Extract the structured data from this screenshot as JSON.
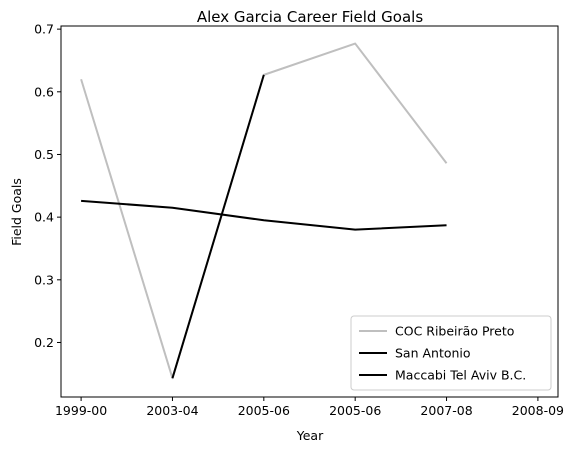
{
  "chart_data": {
    "type": "line",
    "title": "Alex Garcia  Career Field Goals",
    "xlabel": "Year",
    "ylabel": "Field Goals",
    "x_tick_labels": [
      "1999-00",
      "2003-04",
      "2005-06",
      "2005-06",
      "2007-08",
      "2008-09"
    ],
    "y_tick_labels": [
      "0.2",
      "0.3",
      "0.4",
      "0.5",
      "0.6",
      "0.7"
    ],
    "y_ticks": [
      0.2,
      0.3,
      0.4,
      0.5,
      0.6,
      0.7
    ],
    "ylim": [
      0.113,
      0.705
    ],
    "xlim": [
      -0.22,
      5.22
    ],
    "grid": false,
    "legend_position": "lower-right",
    "series": [
      {
        "name": "COC Ribeirão Preto",
        "color": "#bfbfbf",
        "points": [
          [
            0.0,
            0.62
          ],
          [
            1.0,
            0.143
          ],
          [
            2.0,
            0.627
          ],
          [
            3.0,
            0.677
          ],
          [
            4.0,
            0.486
          ]
        ]
      },
      {
        "name": "San Antonio",
        "color": "#000000",
        "points": [
          [
            1.0,
            0.143
          ],
          [
            2.0,
            0.627
          ]
        ]
      },
      {
        "name": "Maccabi Tel Aviv B.C.",
        "color": "#000000",
        "points": [
          [
            0.0,
            0.426
          ],
          [
            1.0,
            0.415
          ],
          [
            2.0,
            0.395
          ],
          [
            3.0,
            0.38
          ],
          [
            4.0,
            0.387
          ]
        ]
      }
    ]
  }
}
